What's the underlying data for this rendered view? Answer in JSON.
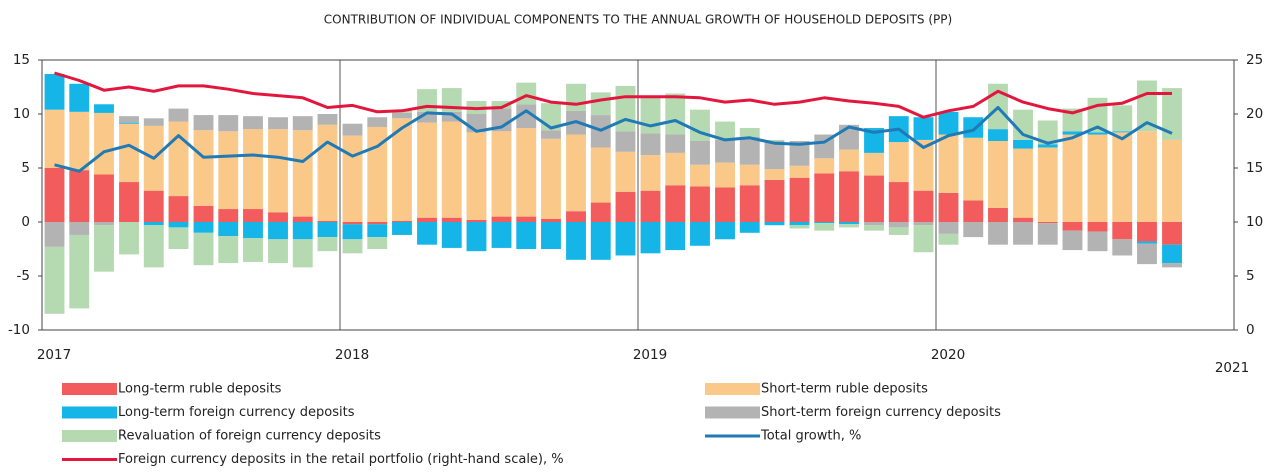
{
  "chart_data": {
    "type": "bar",
    "title": "CONTRIBUTION OF INDIVIDUAL COMPONENTS TO THE ANNUAL GROWTH OF HOUSEHOLD DEPOSITS (PP)",
    "stacked": true,
    "grid": "x",
    "x": [
      2017.042,
      2017.125,
      2017.208,
      2017.292,
      2017.375,
      2017.458,
      2017.542,
      2017.625,
      2017.708,
      2017.792,
      2017.875,
      2017.958,
      2018.042,
      2018.125,
      2018.208,
      2018.292,
      2018.375,
      2018.458,
      2018.542,
      2018.625,
      2018.708,
      2018.792,
      2018.875,
      2018.958,
      2019.042,
      2019.125,
      2019.208,
      2019.292,
      2019.375,
      2019.458,
      2019.542,
      2019.625,
      2019.708,
      2019.792,
      2019.875,
      2019.958,
      2020.042,
      2020.125,
      2020.208,
      2020.292,
      2020.375,
      2020.458,
      2020.542,
      2020.625,
      2020.708,
      2020.792
    ],
    "xlim": [
      2017,
      2021
    ],
    "xticks": [
      2017,
      2018,
      2019,
      2020,
      2021
    ],
    "ylim": [
      -10,
      15
    ],
    "yticks": [
      -10,
      -5,
      0,
      5,
      10,
      15
    ],
    "y2lim": [
      0,
      25
    ],
    "y2ticks": [
      0,
      5,
      10,
      15,
      20,
      25
    ],
    "series": [
      {
        "name": "Long-term ruble deposits",
        "color": "#f25c5c",
        "values": [
          5.0,
          4.8,
          4.4,
          3.7,
          2.9,
          2.4,
          1.5,
          1.2,
          1.2,
          0.9,
          0.5,
          0.1,
          -0.2,
          -0.2,
          0.1,
          0.4,
          0.4,
          0.2,
          0.5,
          0.5,
          0.3,
          1.0,
          1.8,
          2.8,
          2.9,
          3.4,
          3.3,
          3.2,
          3.4,
          3.9,
          4.1,
          4.5,
          4.7,
          4.3,
          3.7,
          2.9,
          2.7,
          2.0,
          1.3,
          0.4,
          -0.1,
          -0.8,
          -0.9,
          -1.6,
          -1.8,
          -2.1
        ]
      },
      {
        "name": "Short-term ruble deposits",
        "color": "#fac98a",
        "values": [
          5.4,
          5.4,
          5.7,
          5.4,
          6.0,
          6.9,
          7.0,
          7.2,
          7.4,
          7.7,
          8.0,
          8.9,
          8.0,
          8.8,
          9.5,
          8.8,
          8.9,
          8.1,
          7.9,
          8.2,
          7.4,
          7.1,
          5.1,
          3.7,
          3.3,
          3.0,
          2.0,
          2.3,
          1.9,
          1.0,
          1.1,
          1.4,
          2.0,
          2.1,
          3.7,
          4.7,
          5.4,
          5.8,
          6.2,
          6.4,
          6.9,
          8.1,
          8.1,
          8.3,
          8.4,
          7.6
        ]
      },
      {
        "name": "Long-term foreign currency deposits",
        "color": "#15b5e8",
        "values": [
          3.3,
          2.6,
          0.8,
          0.1,
          -0.3,
          -0.5,
          -1.0,
          -1.3,
          -1.5,
          -1.6,
          -1.6,
          -1.4,
          -1.4,
          -1.2,
          -1.2,
          -2.1,
          -2.4,
          -2.7,
          -2.4,
          -2.5,
          -2.5,
          -3.5,
          -3.5,
          -3.1,
          -2.9,
          -2.6,
          -2.2,
          -1.6,
          -1.0,
          -0.3,
          -0.3,
          -0.1,
          -0.2,
          2.3,
          2.4,
          2.1,
          2.1,
          1.9,
          1.1,
          0.8,
          0.3,
          0.3,
          0.2,
          0.1,
          -0.2,
          -1.7
        ]
      },
      {
        "name": "Short-term foreign currency deposits",
        "color": "#b3b3b3",
        "values": [
          -2.3,
          -1.2,
          -0.3,
          0.6,
          0.7,
          1.2,
          1.4,
          1.5,
          1.2,
          1.1,
          1.3,
          1.0,
          1.1,
          0.9,
          0.5,
          1.0,
          0.9,
          1.7,
          2.1,
          2.2,
          0.8,
          2.2,
          3.0,
          1.9,
          2.0,
          1.7,
          2.2,
          2.1,
          2.6,
          2.6,
          2.3,
          2.2,
          2.3,
          -0.3,
          -0.5,
          -0.3,
          -1.1,
          -1.4,
          -2.1,
          -2.1,
          -2.0,
          -1.8,
          -1.8,
          -1.5,
          -1.9,
          -0.4
        ]
      },
      {
        "name": "Revaluation of foreign currency deposits",
        "color": "#b5d9b0",
        "values": [
          -6.2,
          -6.8,
          -4.3,
          -3.0,
          -3.9,
          -2.0,
          -3.0,
          -2.5,
          -2.2,
          -2.2,
          -2.6,
          -1.3,
          -1.3,
          -1.1,
          0.3,
          2.1,
          2.2,
          1.2,
          0.7,
          2.0,
          2.5,
          2.5,
          2.1,
          4.2,
          3.5,
          3.8,
          2.9,
          1.7,
          0.8,
          0.1,
          -0.3,
          -0.7,
          -0.3,
          -0.5,
          -0.7,
          -2.5,
          -1.0,
          0.0,
          4.2,
          2.8,
          2.2,
          2.1,
          3.2,
          2.4,
          4.7,
          4.8
        ]
      },
      {
        "name": "Total growth, %",
        "color": "#1f7ab5",
        "type": "line",
        "values": [
          5.3,
          4.7,
          6.5,
          7.1,
          5.9,
          8.0,
          6.0,
          6.1,
          6.2,
          6.0,
          5.6,
          7.4,
          6.1,
          7.0,
          8.7,
          10.1,
          10.0,
          8.4,
          8.8,
          10.3,
          8.7,
          9.3,
          8.5,
          9.5,
          8.9,
          9.4,
          8.3,
          7.6,
          7.8,
          7.3,
          7.2,
          7.4,
          8.8,
          8.3,
          8.6,
          6.9,
          8.0,
          8.5,
          10.6,
          8.1,
          7.3,
          7.8,
          8.8,
          7.7,
          9.2,
          8.2
        ]
      },
      {
        "name": "Foreign currency deposits in the retail portfolio (right-hand scale), %",
        "color": "#e3173e",
        "type": "line",
        "axis": "y2",
        "values": [
          23.8,
          23.1,
          22.2,
          22.5,
          22.1,
          22.6,
          22.6,
          22.3,
          21.9,
          21.7,
          21.5,
          20.6,
          20.8,
          20.2,
          20.3,
          20.7,
          20.6,
          20.5,
          20.6,
          21.7,
          21.1,
          20.9,
          21.3,
          21.6,
          21.6,
          21.6,
          21.5,
          21.1,
          21.3,
          20.9,
          21.1,
          21.5,
          21.2,
          21.0,
          20.7,
          19.7,
          20.3,
          20.7,
          22.1,
          21.1,
          20.5,
          20.1,
          20.8,
          21.0,
          21.9,
          21.9
        ]
      }
    ]
  }
}
